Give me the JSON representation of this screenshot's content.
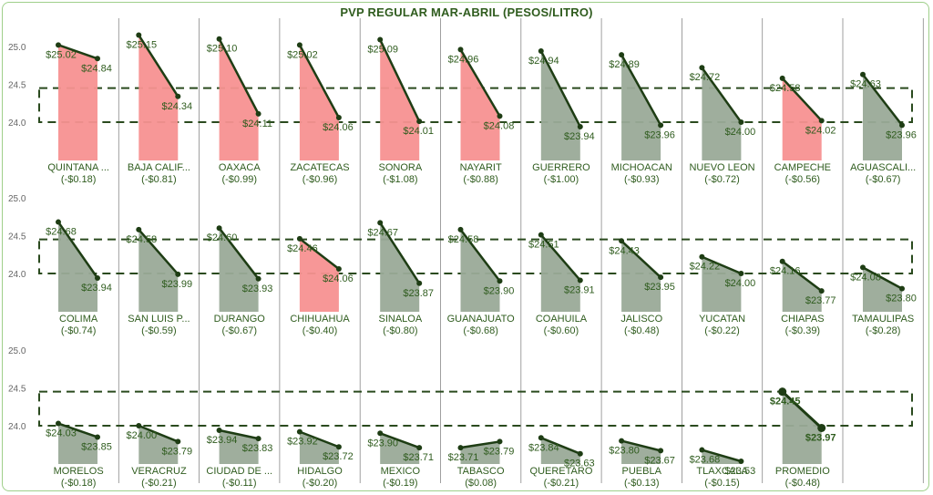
{
  "chart_data": {
    "type": "line",
    "title": "PVP REGULAR MAR-ABRIL (PESOS/LITRO)",
    "y_ticks": [
      "25.0",
      "24.5",
      "24.0"
    ],
    "ylim": [
      23.5,
      25.15
    ],
    "reference_band": [
      24.0,
      24.45
    ],
    "colors": {
      "increase_or_above": "#f79191",
      "decrease": "#9aaa98",
      "line": "#1e3d14",
      "text": "#2f5c1e",
      "band": "#2a4a1e"
    },
    "panels": [
      {
        "name": "QUINTANA ...",
        "start": 25.02,
        "end": 24.84,
        "start_label": "$25.02",
        "end_label": "$24.84",
        "change": "(-$0.18)",
        "highlight": true
      },
      {
        "name": "BAJA CALIF...",
        "start": 25.15,
        "end": 24.34,
        "start_label": "$25.15",
        "end_label": "$24.34",
        "change": "(-$0.81)",
        "highlight": true
      },
      {
        "name": "OAXACA",
        "start": 25.1,
        "end": 24.11,
        "start_label": "$25.10",
        "end_label": "$24.11",
        "change": "(-$0.99)",
        "highlight": true
      },
      {
        "name": "ZACATECAS",
        "start": 25.02,
        "end": 24.06,
        "start_label": "$25.02",
        "end_label": "$24.06",
        "change": "(-$0.96)",
        "highlight": true
      },
      {
        "name": "SONORA",
        "start": 25.09,
        "end": 24.01,
        "start_label": "$25.09",
        "end_label": "$24.01",
        "change": "(-$1.08)",
        "highlight": true
      },
      {
        "name": "NAYARIT",
        "start": 24.96,
        "end": 24.08,
        "start_label": "$24.96",
        "end_label": "$24.08",
        "change": "(-$0.88)",
        "highlight": true
      },
      {
        "name": "GUERRERO",
        "start": 24.94,
        "end": 23.94,
        "start_label": "$24.94",
        "end_label": "$23.94",
        "change": "(-$1.00)",
        "highlight": false
      },
      {
        "name": "MICHOACAN",
        "start": 24.89,
        "end": 23.96,
        "start_label": "$24.89",
        "end_label": "$23.96",
        "change": "(-$0.93)",
        "highlight": false
      },
      {
        "name": "NUEVO LEON",
        "start": 24.72,
        "end": 24.0,
        "start_label": "$24.72",
        "end_label": "$24.00",
        "change": "(-$0.72)",
        "highlight": false
      },
      {
        "name": "CAMPECHE",
        "start": 24.58,
        "end": 24.02,
        "start_label": "$24.58",
        "end_label": "$24.02",
        "change": "(-$0.56)",
        "highlight": true
      },
      {
        "name": "AGUASCALI...",
        "start": 24.63,
        "end": 23.96,
        "start_label": "$24.63",
        "end_label": "$23.96",
        "change": "(-$0.67)",
        "highlight": false
      },
      {
        "name": "COLIMA",
        "start": 24.68,
        "end": 23.94,
        "start_label": "$24.68",
        "end_label": "$23.94",
        "change": "(-$0.74)",
        "highlight": false
      },
      {
        "name": "SAN LUIS P...",
        "start": 24.58,
        "end": 23.99,
        "start_label": "$24.58",
        "end_label": "$23.99",
        "change": "(-$0.59)",
        "highlight": false
      },
      {
        "name": "DURANGO",
        "start": 24.6,
        "end": 23.93,
        "start_label": "$24.60",
        "end_label": "$23.93",
        "change": "(-$0.67)",
        "highlight": false
      },
      {
        "name": "CHIHUAHUA",
        "start": 24.46,
        "end": 24.06,
        "start_label": "$24.46",
        "end_label": "$24.06",
        "change": "(-$0.40)",
        "highlight": true
      },
      {
        "name": "SINALOA",
        "start": 24.67,
        "end": 23.87,
        "start_label": "$24.67",
        "end_label": "$23.87",
        "change": "(-$0.80)",
        "highlight": false
      },
      {
        "name": "GUANAJUATO",
        "start": 24.58,
        "end": 23.9,
        "start_label": "$24.58",
        "end_label": "$23.90",
        "change": "(-$0.68)",
        "highlight": false
      },
      {
        "name": "COAHUILA",
        "start": 24.51,
        "end": 23.91,
        "start_label": "$24.51",
        "end_label": "$23.91",
        "change": "(-$0.60)",
        "highlight": false
      },
      {
        "name": "JALISCO",
        "start": 24.43,
        "end": 23.95,
        "start_label": "$24.43",
        "end_label": "$23.95",
        "change": "(-$0.48)",
        "highlight": false
      },
      {
        "name": "YUCATAN",
        "start": 24.22,
        "end": 24.0,
        "start_label": "$24.22",
        "end_label": "$24.00",
        "change": "(-$0.22)",
        "highlight": false
      },
      {
        "name": "CHIAPAS",
        "start": 24.16,
        "end": 23.77,
        "start_label": "$24.16",
        "end_label": "$23.77",
        "change": "(-$0.39)",
        "highlight": false
      },
      {
        "name": "TAMAULIPAS",
        "start": 24.08,
        "end": 23.8,
        "start_label": "$24.08",
        "end_label": "$23.80",
        "change": "(-$0.28)",
        "highlight": false
      },
      {
        "name": "MORELOS",
        "start": 24.03,
        "end": 23.85,
        "start_label": "$24.03",
        "end_label": "$23.85",
        "change": "(-$0.18)",
        "highlight": false
      },
      {
        "name": "VERACRUZ",
        "start": 24.0,
        "end": 23.79,
        "start_label": "$24.00",
        "end_label": "$23.79",
        "change": "(-$0.21)",
        "highlight": false
      },
      {
        "name": "CIUDAD DE ...",
        "start": 23.94,
        "end": 23.83,
        "start_label": "$23.94",
        "end_label": "$23.83",
        "change": "(-$0.11)",
        "highlight": false
      },
      {
        "name": "HIDALGO",
        "start": 23.92,
        "end": 23.72,
        "start_label": "$23.92",
        "end_label": "$23.72",
        "change": "(-$0.20)",
        "highlight": false
      },
      {
        "name": "MEXICO",
        "start": 23.9,
        "end": 23.71,
        "start_label": "$23.90",
        "end_label": "$23.71",
        "change": "(-$0.19)",
        "highlight": false
      },
      {
        "name": "TABASCO",
        "start": 23.71,
        "end": 23.79,
        "start_label": "$23.71",
        "end_label": "$23.79",
        "change": "($0.08)",
        "highlight": false
      },
      {
        "name": "QUERETARO",
        "start": 23.84,
        "end": 23.63,
        "start_label": "$23.84",
        "end_label": "$23.63",
        "change": "(-$0.21)",
        "highlight": false
      },
      {
        "name": "PUEBLA",
        "start": 23.8,
        "end": 23.67,
        "start_label": "$23.80",
        "end_label": "$23.67",
        "change": "(-$0.13)",
        "highlight": false
      },
      {
        "name": "TLAXCALA",
        "start": 23.68,
        "end": 23.53,
        "start_label": "$23.68",
        "end_label": "$23.53",
        "change": "(-$0.15)",
        "highlight": false
      },
      {
        "name": "PROMEDIO",
        "start": 24.45,
        "end": 23.97,
        "start_label": "$24.45",
        "end_label": "$23.97",
        "change": "(-$0.48)",
        "highlight": false,
        "bold": true
      }
    ]
  }
}
